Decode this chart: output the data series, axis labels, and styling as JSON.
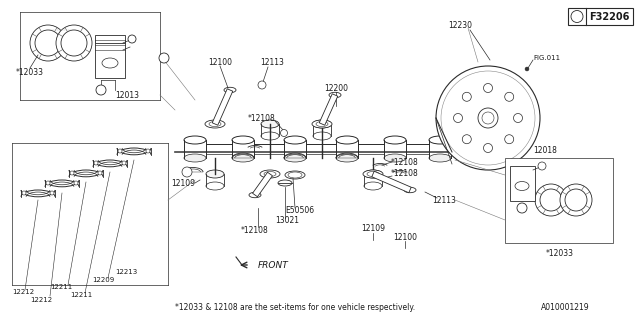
{
  "bg_color": "white",
  "line_color": "#2a2a2a",
  "text_color": "#1a1a1a",
  "title_box_text": "F32206",
  "title_box_num": "1",
  "bottom_note": "*12033 & 12108 are the set-items for one vehicle respectively.",
  "bottom_code": "A010001219",
  "fig_ref": "FIG.011",
  "front_label": "FRONT"
}
